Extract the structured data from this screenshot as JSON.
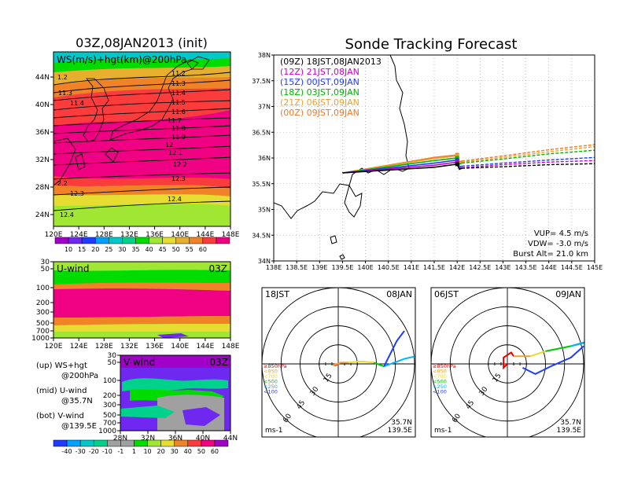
{
  "header": {
    "left_title": "03Z,08JAN2013 (init)",
    "right_title": "Sonde Tracking Forecast"
  },
  "ws_map": {
    "label": "WS(m/s)+hgt(km)@200hPa",
    "lat_ticks": [
      "44N",
      "40N",
      "36N",
      "32N",
      "28N",
      "24N"
    ],
    "lon_ticks": [
      "120E",
      "124E",
      "128E",
      "132E",
      "136E",
      "140E",
      "144E",
      "148E"
    ],
    "contour_labels": [
      "1.2",
      "11.3",
      "11.4",
      "11.2",
      "11.3",
      "11.4",
      "11.5",
      "11.6",
      "11.7",
      "11.8",
      "11.9",
      "12",
      "12.1",
      "12.2",
      "12.3",
      "2.2",
      "12.3",
      "12.4",
      "12.4"
    ],
    "colorbar_ticks": [
      "10",
      "15",
      "20",
      "25",
      "30",
      "35",
      "40",
      "45",
      "50",
      "55",
      "60"
    ],
    "colorbar_colors": [
      "#a000c8",
      "#6e28f0",
      "#1e3cff",
      "#00a0ff",
      "#00c8c8",
      "#00d28c",
      "#00dc00",
      "#a0e632",
      "#e6dc32",
      "#e6af2d",
      "#f08228",
      "#fa3c3c",
      "#f00082"
    ]
  },
  "u_panel": {
    "label": "U-wind",
    "time": "03Z",
    "pressure_ticks": [
      "30",
      "50",
      "100",
      "200",
      "300",
      "500",
      "700",
      "1000"
    ],
    "lon_ticks": [
      "120E",
      "124E",
      "128E",
      "132E",
      "136E",
      "140E",
      "144E",
      "148E"
    ]
  },
  "v_panel": {
    "label": "V-wind",
    "time": "03Z",
    "pressure_ticks": [
      "30",
      "50",
      "100",
      "200",
      "300",
      "500",
      "700",
      "1000"
    ],
    "lat_ticks": [
      "28N",
      "32N",
      "36N",
      "40N",
      "44N"
    ]
  },
  "notes": [
    {
      "line1": "(up) WS+hgt",
      "line2": "@200hPa"
    },
    {
      "line1": "(mid) U-wind",
      "line2": "@35.7N"
    },
    {
      "line1": "(bot) V-wind",
      "line2": "@139.5E"
    }
  ],
  "uv_colorbar": {
    "ticks": [
      "-40",
      "-30",
      "-20",
      "-10",
      "-1",
      "1",
      "10",
      "20",
      "30",
      "40",
      "50",
      "60"
    ],
    "colors": [
      "#1e3cff",
      "#00a0ff",
      "#00c8c8",
      "#00d28c",
      "#a0a0a0",
      "#a0a0a0",
      "#00dc00",
      "#a0e632",
      "#e6dc32",
      "#f08228",
      "#fa3c3c",
      "#f00082",
      "#a000c8"
    ]
  },
  "track_map": {
    "lat_ticks": [
      "38N",
      "37.5N",
      "37N",
      "36.5N",
      "36N",
      "35.5N",
      "35N",
      "34.5N",
      "34N"
    ],
    "lon_ticks": [
      "138E",
      "138.5E",
      "139E",
      "139.5E",
      "140E",
      "140.5E",
      "141E",
      "141.5E",
      "142E",
      "142.5E",
      "143E",
      "143.5E",
      "144E",
      "144.5E",
      "145E"
    ],
    "legend": [
      {
        "text": "(09Z) 18JST,08JAN2013",
        "color": "#000000"
      },
      {
        "text": "(12Z) 21JST,08JAN",
        "color": "#c800c8"
      },
      {
        "text": "(15Z) 00JST,09JAN",
        "color": "#1e3cff"
      },
      {
        "text": "(18Z) 03JST,09JAN",
        "color": "#00b400"
      },
      {
        "text": "(21Z) 06JST,09JAN",
        "color": "#f0a028"
      },
      {
        "text": "(00Z) 09JST,09JAN",
        "color": "#f07828"
      }
    ],
    "params": [
      "VUP= 4.5 m/s",
      "VDW= -3.0 m/s",
      "Burst Alt= 21.0 km"
    ]
  },
  "hodographs": [
    {
      "left_label": "18JST",
      "right_label": "08JAN",
      "ring_labels": [
        "15",
        "30",
        "45",
        "60"
      ],
      "levels": [
        "≥850hPa",
        "<850",
        "<700",
        "<500",
        "<250",
        "<100"
      ],
      "unit": "ms-1",
      "loc_lat": "35.7N",
      "loc_lon": "139.5E"
    },
    {
      "left_label": "06JST",
      "right_label": "09JAN",
      "ring_labels": [
        "15",
        "30",
        "45",
        "60"
      ],
      "levels": [
        "≥850hPa",
        "<850",
        "<700",
        "<500",
        "<250",
        "<100"
      ],
      "unit": "ms-1",
      "loc_lat": "35.7N",
      "loc_lon": "139.5E"
    }
  ],
  "hodograph_level_colors": [
    "#e60000",
    "#f0a028",
    "#e6dc32",
    "#00c800",
    "#00b4ff",
    "#1e3cff"
  ],
  "chart_data": [
    {
      "type": "line",
      "title": "Sonde Tracking Forecast",
      "xlabel": "",
      "ylabel": "",
      "xlim": [
        138,
        145
      ],
      "ylim": [
        34,
        38
      ],
      "grid": true,
      "legend_position": "top-left",
      "series": [
        {
          "name": "(09Z) 18JST,08JAN2013",
          "x": [
            139.5,
            141.5,
            142.0,
            142.05,
            142.1,
            143.0,
            144.0,
            145.0
          ],
          "y": [
            35.71,
            35.82,
            35.88,
            35.78,
            35.8,
            35.83,
            35.87,
            35.89
          ]
        },
        {
          "name": "(12Z) 21JST,08JAN",
          "x": [
            139.5,
            141.5,
            142.0,
            142.05,
            142.1,
            143.0,
            144.0,
            145.0
          ],
          "y": [
            35.71,
            35.86,
            35.92,
            35.8,
            35.81,
            35.87,
            35.92,
            35.95
          ]
        },
        {
          "name": "(15Z) 00JST,09JAN",
          "x": [
            139.5,
            141.5,
            142.0,
            142.05,
            142.1,
            143.0,
            144.0,
            145.0
          ],
          "y": [
            35.71,
            35.9,
            35.96,
            35.83,
            35.84,
            35.9,
            35.96,
            36.01
          ]
        },
        {
          "name": "(18Z) 03JST,09JAN",
          "x": [
            139.5,
            141.5,
            142.0,
            142.05,
            142.1,
            143.0,
            144.0,
            145.0
          ],
          "y": [
            35.71,
            35.95,
            36.0,
            35.88,
            35.9,
            35.98,
            36.08,
            36.15
          ]
        },
        {
          "name": "(21Z) 06JST,09JAN",
          "x": [
            139.5,
            141.5,
            142.0,
            142.05,
            142.1,
            143.0,
            144.0,
            145.0
          ],
          "y": [
            35.71,
            35.99,
            36.04,
            35.91,
            35.92,
            36.01,
            36.12,
            36.22
          ]
        },
        {
          "name": "(00Z) 09JST,09JAN",
          "x": [
            139.5,
            141.5,
            142.0,
            142.05,
            142.1,
            143.0,
            144.0,
            145.0
          ],
          "y": [
            35.71,
            36.01,
            36.06,
            35.93,
            35.94,
            36.04,
            36.16,
            36.26
          ]
        }
      ]
    },
    {
      "type": "line",
      "title": "18JST 08JAN",
      "xlabel": "",
      "ylabel": "",
      "xlim": [
        -70,
        70
      ],
      "ylim": [
        -70,
        70
      ],
      "series": [
        {
          "name": "≥850hPa",
          "x": [
            0,
            -2,
            -4
          ],
          "y": [
            0,
            -1,
            -1
          ]
        },
        {
          "name": "<850",
          "x": [
            -4,
            2,
            8
          ],
          "y": [
            -1,
            1,
            1
          ]
        },
        {
          "name": "<700",
          "x": [
            8,
            18,
            28
          ],
          "y": [
            1,
            2,
            1
          ]
        },
        {
          "name": "<500",
          "x": [
            28,
            36
          ],
          "y": [
            1,
            -2
          ]
        },
        {
          "name": "<250",
          "x": [
            36,
            52,
            65
          ],
          "y": [
            -2,
            4,
            7
          ]
        },
        {
          "name": "<100",
          "x": [
            36,
            42,
            46,
            52
          ],
          "y": [
            -2,
            10,
            18,
            26
          ]
        }
      ]
    },
    {
      "type": "line",
      "title": "06JST 09JAN",
      "xlabel": "",
      "ylabel": "",
      "xlim": [
        -70,
        70
      ],
      "ylim": [
        -70,
        70
      ],
      "series": [
        {
          "name": "≥850hPa",
          "x": [
            0,
            -3,
            -3,
            3,
            5
          ],
          "y": [
            0,
            -3,
            5,
            9,
            6
          ]
        },
        {
          "name": "<850",
          "x": [
            5,
            12,
            18
          ],
          "y": [
            6,
            6,
            6
          ]
        },
        {
          "name": "<700",
          "x": [
            18,
            24,
            30
          ],
          "y": [
            6,
            8,
            10
          ]
        },
        {
          "name": "<500",
          "x": [
            30,
            40,
            50,
            62,
            72
          ],
          "y": [
            10,
            12,
            14,
            17,
            20
          ]
        },
        {
          "name": "<250",
          "x": [
            50,
            64
          ],
          "y": [
            14,
            18
          ]
        },
        {
          "name": "<100",
          "x": [
            12,
            22,
            34,
            50,
            60
          ],
          "y": [
            -3,
            -8,
            -2,
            5,
            14
          ]
        }
      ]
    }
  ]
}
